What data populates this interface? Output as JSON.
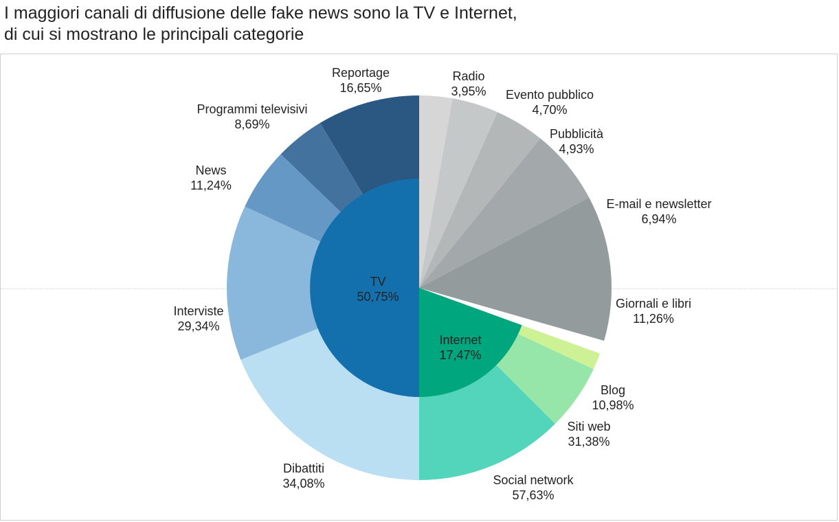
{
  "title": {
    "line1": "I maggiori canali di diffusione delle fake news sono la TV e Internet,",
    "line2": "di cui si mostrano le principali categorie"
  },
  "chart_data": {
    "type": "pie",
    "variant": "sunburst",
    "inner": [
      {
        "name": "TV",
        "value": 50.75,
        "label": "50,75%",
        "color": "#1370ad"
      },
      {
        "name": "Internet",
        "value": 17.47,
        "label": "17,47%",
        "color": "#00a67e"
      }
    ],
    "outer": [
      {
        "name": "Reportage",
        "label": "16,65%",
        "parent": "TV",
        "color": "#2a5883"
      },
      {
        "name": "Programmi televisivi",
        "label": "8,69%",
        "parent": "TV",
        "color": "#44729f"
      },
      {
        "name": "News",
        "label": "11,24%",
        "parent": "TV",
        "color": "#6598c4"
      },
      {
        "name": "Interviste",
        "label": "29,34%",
        "parent": "TV",
        "color": "#8ab8dc"
      },
      {
        "name": "Dibattiti",
        "label": "34,08%",
        "parent": "TV",
        "color": "#badef2"
      },
      {
        "name": "Social network",
        "label": "57,63%",
        "parent": "Internet",
        "color": "#52d5bb"
      },
      {
        "name": "Siti web",
        "label": "31,38%",
        "parent": "Internet",
        "color": "#95e6a8"
      },
      {
        "name": "Blog",
        "label": "10,98%",
        "parent": "Internet",
        "color": "#cdf296"
      },
      {
        "name": "Giornali e libri",
        "label": "11,26%",
        "parent": null,
        "color": "#939b9c"
      },
      {
        "name": "E-mail e newsletter",
        "label": "6,94%",
        "parent": null,
        "color": "#a3a9aa"
      },
      {
        "name": "Pubblicità",
        "label": "4,93%",
        "parent": null,
        "color": "#b3b7b8"
      },
      {
        "name": "Evento pubblico",
        "label": "4,70%",
        "parent": null,
        "color": "#c5c8c8"
      },
      {
        "name": "Radio",
        "label": "3,95%",
        "parent": null,
        "color": "#d6d6d6"
      }
    ]
  }
}
